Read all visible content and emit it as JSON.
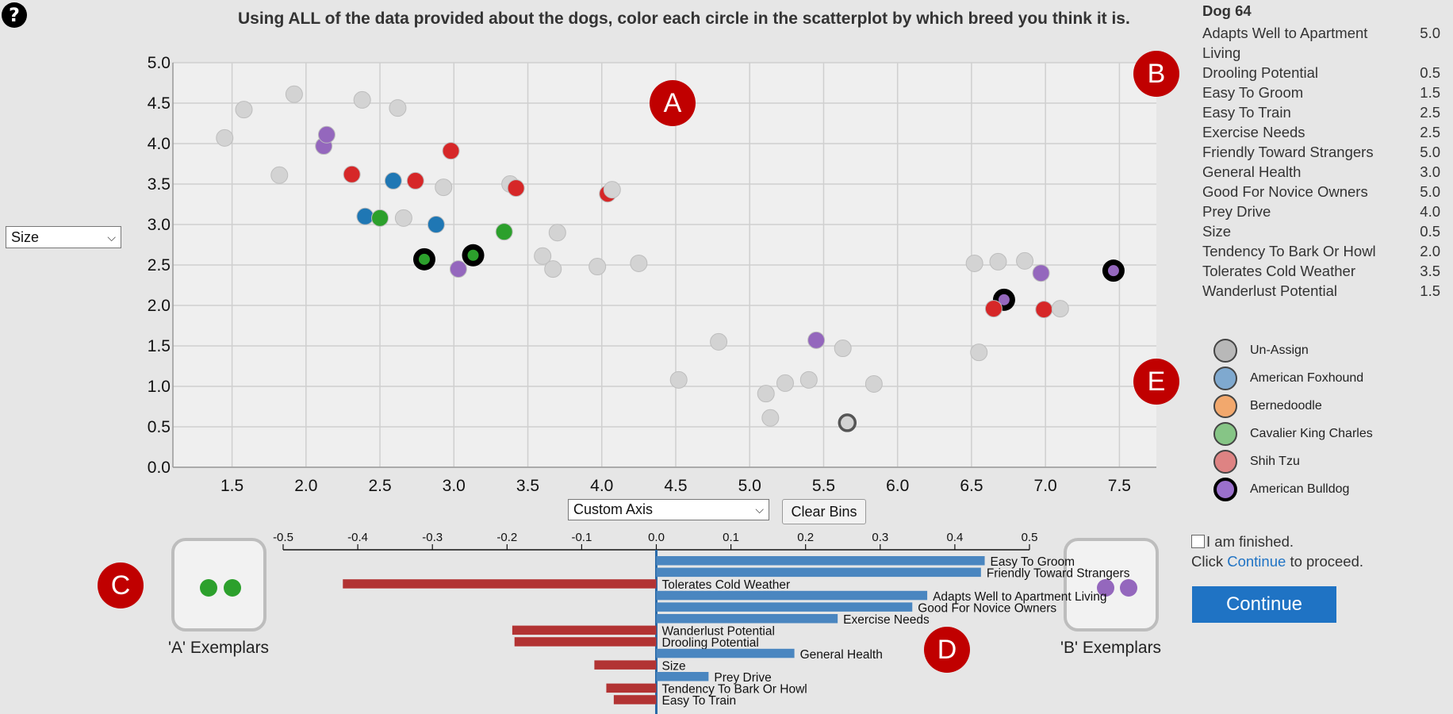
{
  "help_icon": "?",
  "instruction": "Using ALL of the data provided about the dogs, color each circle in the scatterplot by which breed you think it is.",
  "y_axis_select": {
    "value": "Size"
  },
  "x_axis_select": {
    "value": "Custom Axis"
  },
  "clear_bins_label": "Clear Bins",
  "callouts": {
    "a": "A",
    "b": "B",
    "c": "C",
    "d": "D",
    "e": "E"
  },
  "colors": {
    "unassigned": "#d3d3d3",
    "american_foxhound": "#1f77b4",
    "cavalier": "#2ca02c",
    "shih_tzu": "#d62728",
    "american_bulldog": "#9467bd",
    "positive_bar": "#4a86c0",
    "negative_bar": "#b23333",
    "accent": "#c00000"
  },
  "chart_data": [
    {
      "type": "scatter",
      "xlim": [
        1.1,
        7.75
      ],
      "ylim": [
        0,
        5
      ],
      "x_ticks": [
        "1.5",
        "2.0",
        "2.5",
        "3.0",
        "3.5",
        "4.0",
        "4.5",
        "5.0",
        "5.5",
        "6.0",
        "6.5",
        "7.0",
        "7.5"
      ],
      "y_ticks": [
        "0.0",
        "0.5",
        "1.0",
        "1.5",
        "2.0",
        "2.5",
        "3.0",
        "3.5",
        "4.0",
        "4.5",
        "5.0"
      ],
      "grid": true,
      "points": [
        {
          "x": 1.45,
          "y": 4.07,
          "c": "unassigned"
        },
        {
          "x": 1.58,
          "y": 4.42,
          "c": "unassigned"
        },
        {
          "x": 1.82,
          "y": 3.61,
          "c": "unassigned"
        },
        {
          "x": 1.92,
          "y": 4.61,
          "c": "unassigned"
        },
        {
          "x": 2.38,
          "y": 4.54,
          "c": "unassigned"
        },
        {
          "x": 2.62,
          "y": 4.44,
          "c": "unassigned"
        },
        {
          "x": 2.12,
          "y": 3.97,
          "c": "american_bulldog"
        },
        {
          "x": 2.14,
          "y": 4.11,
          "c": "american_bulldog"
        },
        {
          "x": 2.31,
          "y": 3.62,
          "c": "shih_tzu"
        },
        {
          "x": 2.59,
          "y": 3.54,
          "c": "american_foxhound"
        },
        {
          "x": 2.74,
          "y": 3.54,
          "c": "shih_tzu"
        },
        {
          "x": 2.98,
          "y": 3.91,
          "c": "shih_tzu"
        },
        {
          "x": 2.93,
          "y": 3.46,
          "c": "unassigned"
        },
        {
          "x": 3.38,
          "y": 3.5,
          "c": "unassigned"
        },
        {
          "x": 3.42,
          "y": 3.45,
          "c": "shih_tzu"
        },
        {
          "x": 4.04,
          "y": 3.38,
          "c": "shih_tzu"
        },
        {
          "x": 4.07,
          "y": 3.43,
          "c": "unassigned"
        },
        {
          "x": 2.4,
          "y": 3.1,
          "c": "american_foxhound"
        },
        {
          "x": 2.5,
          "y": 3.08,
          "c": "cavalier"
        },
        {
          "x": 2.66,
          "y": 3.08,
          "c": "unassigned"
        },
        {
          "x": 2.88,
          "y": 3.0,
          "c": "american_foxhound"
        },
        {
          "x": 3.34,
          "y": 2.91,
          "c": "cavalier"
        },
        {
          "x": 3.7,
          "y": 2.9,
          "c": "unassigned"
        },
        {
          "x": 3.6,
          "y": 2.61,
          "c": "unassigned"
        },
        {
          "x": 3.67,
          "y": 2.45,
          "c": "unassigned"
        },
        {
          "x": 3.97,
          "y": 2.48,
          "c": "unassigned"
        },
        {
          "x": 4.25,
          "y": 2.52,
          "c": "unassigned"
        },
        {
          "x": 2.8,
          "y": 2.57,
          "c": "cavalier",
          "selected": true
        },
        {
          "x": 3.13,
          "y": 2.62,
          "c": "cavalier",
          "selected": true
        },
        {
          "x": 3.03,
          "y": 2.45,
          "c": "american_bulldog"
        },
        {
          "x": 4.52,
          "y": 1.08,
          "c": "unassigned"
        },
        {
          "x": 4.79,
          "y": 1.55,
          "c": "unassigned"
        },
        {
          "x": 5.11,
          "y": 0.91,
          "c": "unassigned"
        },
        {
          "x": 5.14,
          "y": 0.61,
          "c": "unassigned"
        },
        {
          "x": 5.24,
          "y": 1.04,
          "c": "unassigned"
        },
        {
          "x": 5.4,
          "y": 1.08,
          "c": "unassigned"
        },
        {
          "x": 5.45,
          "y": 1.57,
          "c": "american_bulldog"
        },
        {
          "x": 5.63,
          "y": 1.47,
          "c": "unassigned"
        },
        {
          "x": 5.66,
          "y": 0.55,
          "c": "unassigned",
          "dark_ring": true
        },
        {
          "x": 5.84,
          "y": 1.03,
          "c": "unassigned"
        },
        {
          "x": 6.52,
          "y": 2.52,
          "c": "unassigned"
        },
        {
          "x": 6.68,
          "y": 2.54,
          "c": "unassigned"
        },
        {
          "x": 6.86,
          "y": 2.55,
          "c": "unassigned"
        },
        {
          "x": 6.97,
          "y": 2.4,
          "c": "american_bulldog"
        },
        {
          "x": 7.46,
          "y": 2.43,
          "c": "american_bulldog",
          "selected": true
        },
        {
          "x": 6.72,
          "y": 2.07,
          "c": "american_bulldog",
          "selected": true
        },
        {
          "x": 6.65,
          "y": 1.96,
          "c": "shih_tzu"
        },
        {
          "x": 6.99,
          "y": 1.95,
          "c": "shih_tzu"
        },
        {
          "x": 7.1,
          "y": 1.96,
          "c": "unassigned"
        },
        {
          "x": 6.55,
          "y": 1.42,
          "c": "unassigned"
        }
      ]
    },
    {
      "type": "bar",
      "orientation": "horizontal",
      "xlim": [
        -0.5,
        0.5
      ],
      "x_ticks": [
        "-0.5",
        "-0.4",
        "-0.3",
        "-0.2",
        "-0.1",
        "0.0",
        "0.1",
        "0.2",
        "0.3",
        "0.4",
        "0.5"
      ],
      "categories": [
        "Easy To Groom",
        "Friendly Toward Strangers",
        "Tolerates Cold Weather",
        "Adapts Well to Apartment Living",
        "Good For Novice Owners",
        "Exercise Needs",
        "Wanderlust Potential",
        "Drooling Potential",
        "General Health",
        "Size",
        "Prey Drive",
        "Tendency To Bark Or Howl",
        "Easy To Train"
      ],
      "values": [
        0.44,
        0.435,
        -0.42,
        0.363,
        0.343,
        0.243,
        -0.193,
        -0.19,
        0.185,
        -0.083,
        0.07,
        -0.067,
        -0.057
      ]
    }
  ],
  "info_panel": {
    "title": "Dog 64",
    "rows": [
      {
        "label": "Adapts Well to Apartment Living",
        "value": "5.0"
      },
      {
        "label": "Drooling Potential",
        "value": "0.5"
      },
      {
        "label": "Easy To Groom",
        "value": "1.5"
      },
      {
        "label": "Easy To Train",
        "value": "2.5"
      },
      {
        "label": "Exercise Needs",
        "value": "2.5"
      },
      {
        "label": "Friendly Toward Strangers",
        "value": "5.0"
      },
      {
        "label": "General Health",
        "value": "3.0"
      },
      {
        "label": "Good For Novice Owners",
        "value": "5.0"
      },
      {
        "label": "Prey Drive",
        "value": "4.0"
      },
      {
        "label": "Size",
        "value": "0.5"
      },
      {
        "label": "Tendency To Bark Or Howl",
        "value": "2.0"
      },
      {
        "label": "Tolerates Cold Weather",
        "value": "3.5"
      },
      {
        "label": "Wanderlust Potential",
        "value": "1.5"
      }
    ]
  },
  "legend": [
    {
      "label": "Un-Assign",
      "color": "#b8b8b8",
      "border": "#444"
    },
    {
      "label": "American Foxhound",
      "color": "#7fa9cf",
      "border": "#444"
    },
    {
      "label": "Bernedoodle",
      "color": "#f2a86d",
      "border": "#444"
    },
    {
      "label": "Cavalier King Charles",
      "color": "#86c586",
      "border": "#444"
    },
    {
      "label": "Shih Tzu",
      "color": "#de8383",
      "border": "#444"
    },
    {
      "label": "American Bulldog",
      "color": "#9a70cc",
      "border": "#000"
    }
  ],
  "exemplars": {
    "a_label": "'A' Exemplars",
    "b_label": "'B' Exemplars",
    "a_color": "#2ca02c",
    "b_color": "#9467bd"
  },
  "finish": {
    "checkbox_label": "I am finished.",
    "click_text": "Click",
    "continue_link": "Continue",
    "proceed_text": "to proceed."
  },
  "continue_button": "Continue"
}
